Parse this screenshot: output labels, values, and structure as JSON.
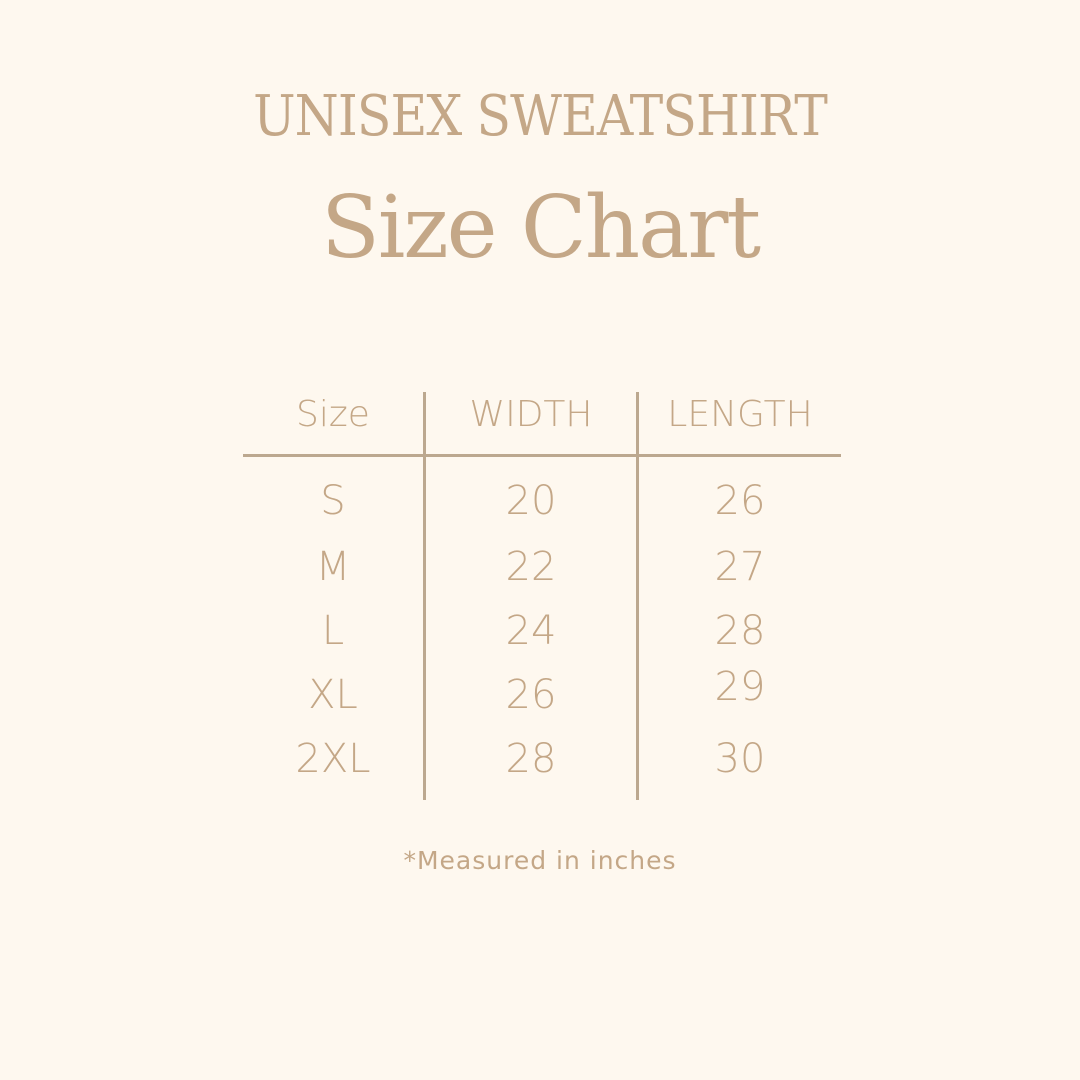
{
  "title": "UNISEX SWEATSHIRT",
  "subtitle": "Size Chart",
  "table": {
    "headers": [
      "Size",
      "WIDTH",
      "LENGTH"
    ],
    "rows": [
      [
        "S",
        "20",
        "26"
      ],
      [
        "M",
        "22",
        "27"
      ],
      [
        "L",
        "24",
        "28"
      ],
      [
        "XL",
        "26",
        "29"
      ],
      [
        "2XL",
        "28",
        "30"
      ]
    ]
  },
  "note": "*Measured in inches",
  "colors": {
    "background": "#fef8ef",
    "text": "#c4a787",
    "lines": "#bca88f"
  }
}
